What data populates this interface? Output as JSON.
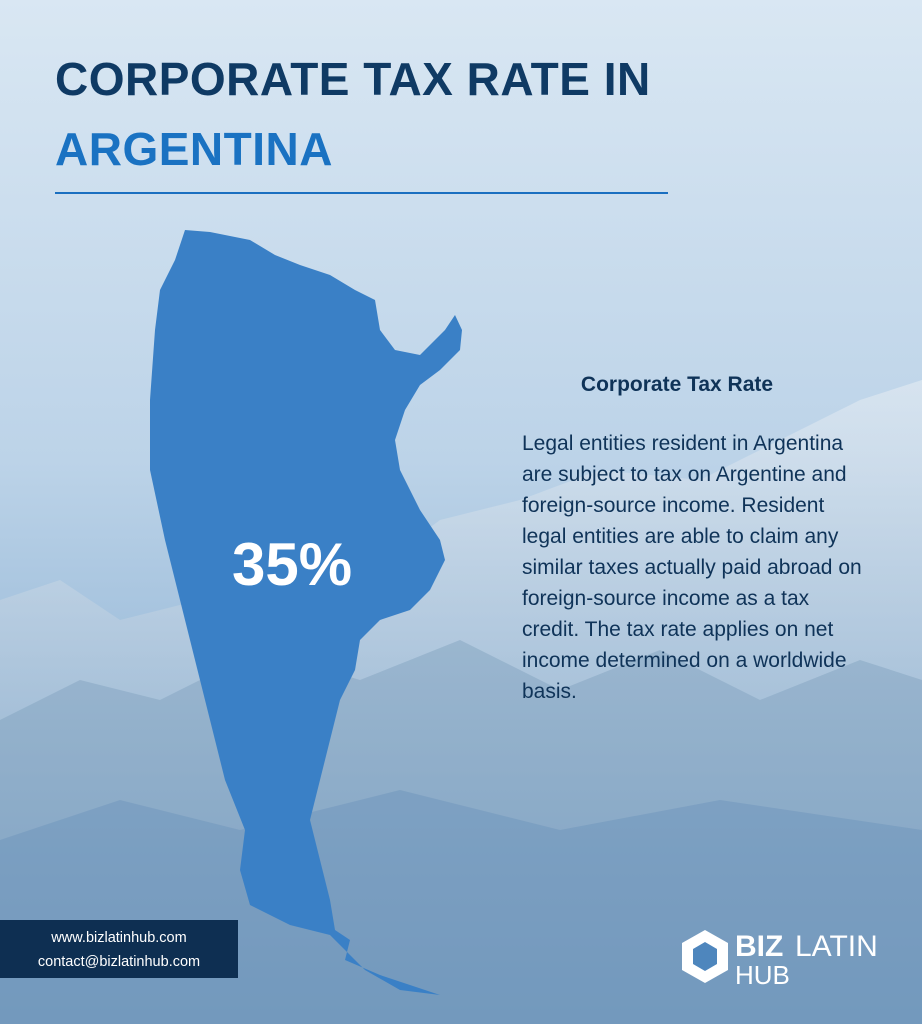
{
  "header": {
    "title_line1": "CORPORATE TAX RATE IN",
    "title_line2": "ARGENTINA"
  },
  "map": {
    "rate": "35%"
  },
  "section": {
    "heading": "Corporate Tax Rate",
    "body": "Legal entities resident in Argentina are subject to tax on Argentine and foreign-source income. Resident legal entities are able to claim any similar taxes actually paid abroad on foreign-source income as a tax credit. The tax rate applies on net income determined on a worldwide basis."
  },
  "footer": {
    "website": "www.bizlatinhub.com",
    "email": "contact@bizlatinhub.com"
  },
  "logo": {
    "part1": "BIZ",
    "part2": "LATIN",
    "part3": "HUB"
  }
}
